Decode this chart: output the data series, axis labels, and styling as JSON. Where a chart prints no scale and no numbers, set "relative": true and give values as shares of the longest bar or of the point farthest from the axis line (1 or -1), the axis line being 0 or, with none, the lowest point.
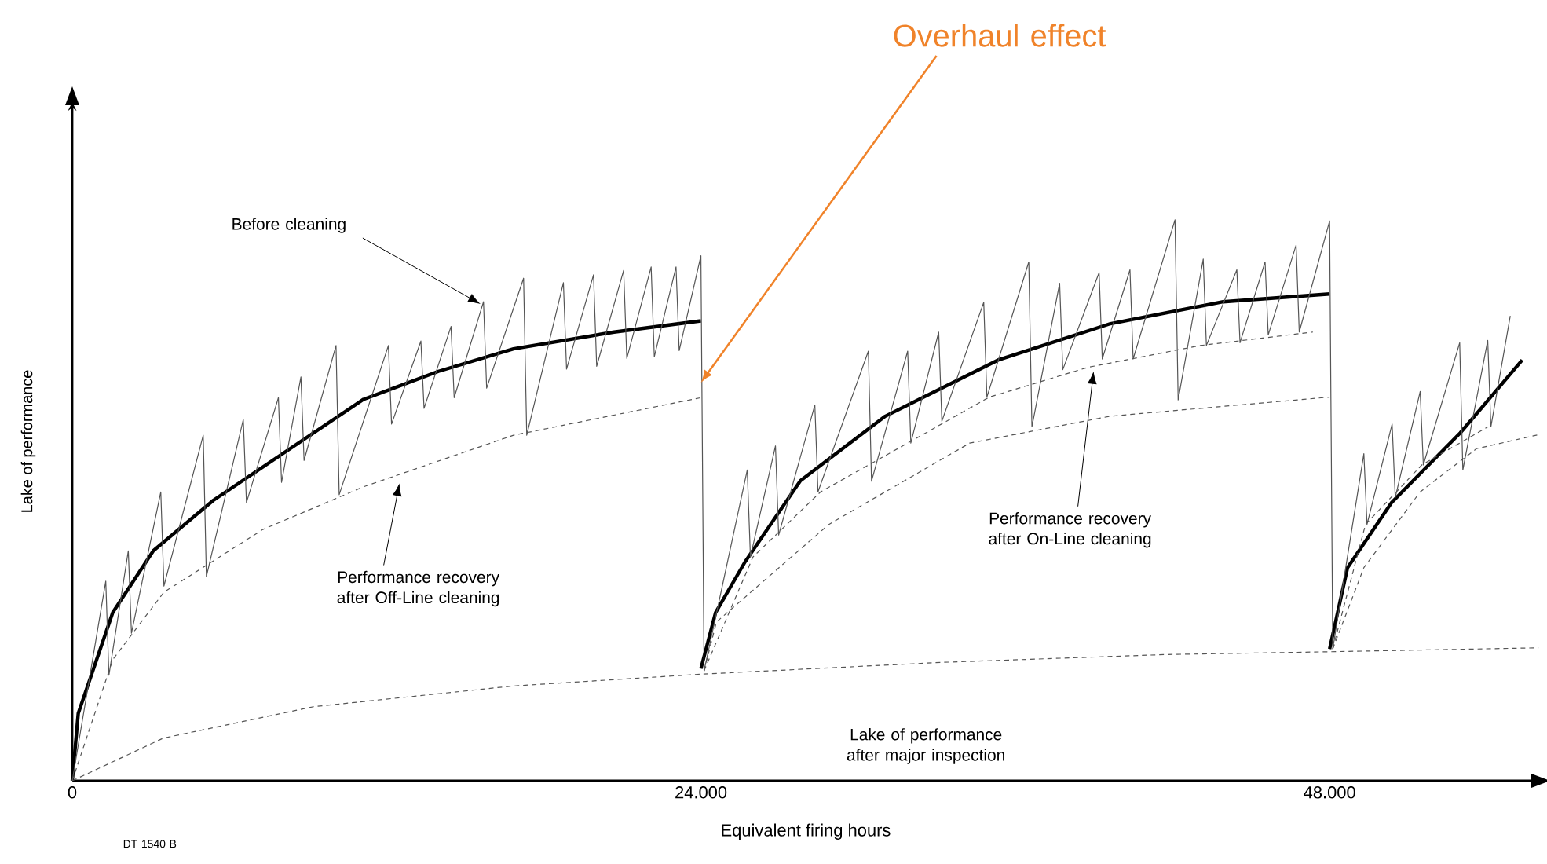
{
  "chart_data": {
    "type": "line",
    "xlabel": "Equivalent firing hours",
    "ylabel": "Lake of performance",
    "relative": true,
    "tick_labels": "x",
    "marker": "none",
    "xlim": [
      0,
      56000
    ],
    "xticks": [
      {
        "value": 0,
        "label": "0"
      },
      {
        "value": 24000,
        "label": "24.000"
      },
      {
        "value": 48000,
        "label": "48.000"
      }
    ],
    "series": [
      {
        "color": "#000000",
        "line_style": "solid",
        "x": [
          0,
          229,
          1547,
          3094,
          5386,
          8251,
          11116,
          13981,
          16845,
          20684,
          24000
        ],
        "values": [
          0,
          0.12,
          0.3,
          0.41,
          0.5,
          0.59,
          0.68,
          0.73,
          0.77,
          0.8,
          0.82
        ]
      },
      {
        "color": "#000000",
        "line_style": "solid",
        "x": [
          24000,
          24561,
          25682,
          27800,
          31040,
          35339,
          39637,
          43936,
          48000
        ],
        "values": [
          0.2,
          0.3,
          0.39,
          0.535,
          0.65,
          0.75,
          0.815,
          0.854,
          0.868
        ]
      },
      {
        "color": "#000000",
        "line_style": "solid",
        "x": [
          48000,
          48685,
          50368,
          52984,
          55351
        ],
        "values": [
          0.235,
          0.38,
          0.496,
          0.62,
          0.75
        ]
      },
      {
        "color": "#555555",
        "line_style": "solid",
        "x": [
          0,
          1280,
          1400,
          2140,
          2260,
          3380,
          3500,
          5000,
          5120,
          6530,
          6650,
          7870,
          7990,
          8730,
          8850,
          10070,
          10190,
          12070,
          12190,
          13310,
          13430,
          14460,
          14580,
          15700,
          15820,
          17230,
          17350,
          18750,
          18870,
          19900,
          20020,
          21050,
          21170,
          22100,
          22220,
          23050,
          23170,
          24000,
          24120,
          25769,
          25889,
          26847,
          26967,
          28349,
          28469,
          30392,
          30512,
          31893,
          32013,
          33077,
          33197,
          34797,
          34917,
          36516,
          36636,
          37694,
          37814,
          39201,
          39321,
          40379,
          40499,
          42098,
          42218,
          43176,
          43296,
          44459,
          44579,
          45537,
          45657,
          46721,
          46841,
          48000,
          48120,
          49308,
          49428,
          50386,
          50506,
          51458,
          51578,
          52966,
          53086,
          54037,
          54157,
          54897
        ],
        "values": [
          0,
          0.356,
          0.188,
          0.41,
          0.263,
          0.515,
          0.347,
          0.616,
          0.364,
          0.644,
          0.496,
          0.683,
          0.532,
          0.72,
          0.571,
          0.776,
          0.51,
          0.776,
          0.636,
          0.784,
          0.664,
          0.81,
          0.683,
          0.854,
          0.7,
          0.896,
          0.616,
          0.888,
          0.734,
          0.902,
          0.739,
          0.91,
          0.753,
          0.916,
          0.756,
          0.916,
          0.767,
          0.936,
          0.196,
          0.554,
          0.399,
          0.597,
          0.438,
          0.67,
          0.515,
          0.766,
          0.534,
          0.766,
          0.602,
          0.8,
          0.641,
          0.853,
          0.684,
          0.925,
          0.631,
          0.887,
          0.733,
          0.906,
          0.752,
          0.911,
          0.752,
          1.0,
          0.679,
          0.93,
          0.776,
          0.911,
          0.781,
          0.925,
          0.795,
          0.955,
          0.8,
          0.998,
          0.235,
          0.583,
          0.457,
          0.636,
          0.505,
          0.694,
          0.563,
          0.781,
          0.554,
          0.785,
          0.631,
          0.829
        ]
      },
      {
        "color": "#555555",
        "line_style": "dashed",
        "x": [
          0,
          1547,
          3495,
          7277,
          11116,
          16845,
          24000
        ],
        "values": [
          0,
          0.216,
          0.336,
          0.448,
          0.524,
          0.616,
          0.683
        ]
      },
      {
        "color": "#555555",
        "line_style": "dashed",
        "x": [
          24120,
          24592,
          28884,
          34262,
          39631,
          48000
        ],
        "values": [
          0.196,
          0.283,
          0.457,
          0.602,
          0.65,
          0.684
        ]
      },
      {
        "color": "#555555",
        "line_style": "dashed",
        "x": [
          48120,
          49308,
          51458,
          53607,
          55974
        ],
        "values": [
          0.235,
          0.38,
          0.515,
          0.592,
          0.617
        ]
      },
      {
        "color": "#555555",
        "line_style": "dashed",
        "x": [
          24120,
          25987,
          28567,
          31893,
          35008,
          38765,
          43064,
          47363
        ],
        "values": [
          0.196,
          0.399,
          0.515,
          0.602,
          0.684,
          0.737,
          0.776,
          0.8
        ]
      },
      {
        "color": "#555555",
        "line_style": "dashed",
        "x": [
          48120,
          49370,
          51520,
          54037
        ],
        "values": [
          0.235,
          0.457,
          0.563,
          0.631
        ]
      },
      {
        "color": "#555555",
        "line_style": "dashed",
        "x": [
          0,
          3476,
          9208,
          16845,
          24000,
          33158,
          41755,
          48000,
          55974
        ],
        "values": [
          0,
          0.076,
          0.132,
          0.169,
          0.19,
          0.211,
          0.225,
          0.23,
          0.237
        ]
      }
    ],
    "annotations": [
      {
        "text": "Overhaul effect",
        "x": 24000,
        "y": 0.71
      },
      {
        "text": "Before cleaning",
        "x": 15586,
        "y": 0.85
      },
      {
        "text": "Performance recovery after Off-Line cleaning",
        "x": 12490,
        "y": 0.53
      },
      {
        "text": "Performance recovery after On-Line cleaning",
        "x": 38990,
        "y": 0.73
      },
      "Lake of performance after major inspection",
      "DT 1540 B"
    ]
  }
}
